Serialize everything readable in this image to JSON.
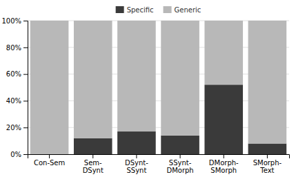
{
  "chart_data": {
    "type": "bar",
    "stacked": true,
    "categories": [
      "Con-Sem",
      "Sem-\nDSynt",
      "DSynt-\nSSynt",
      "SSynt-\nDMorph",
      "DMorph-\nSMorph",
      "SMorph-\nText"
    ],
    "series": [
      {
        "name": "Specific",
        "color": "#3a3a3a",
        "values": [
          0,
          12,
          17,
          14,
          52,
          8
        ]
      },
      {
        "name": "Generic",
        "color": "#b8b8b8",
        "values": [
          100,
          88,
          83,
          86,
          48,
          92
        ]
      }
    ],
    "ylim": [
      0,
      100
    ],
    "yticks": [
      {
        "value": 0,
        "label": "0%"
      },
      {
        "value": 20,
        "label": "20%"
      },
      {
        "value": 40,
        "label": "40%"
      },
      {
        "value": 60,
        "label": "60%"
      },
      {
        "value": 80,
        "label": "80%"
      },
      {
        "value": 100,
        "label": "100%"
      }
    ],
    "grid": true,
    "legend": "top"
  }
}
